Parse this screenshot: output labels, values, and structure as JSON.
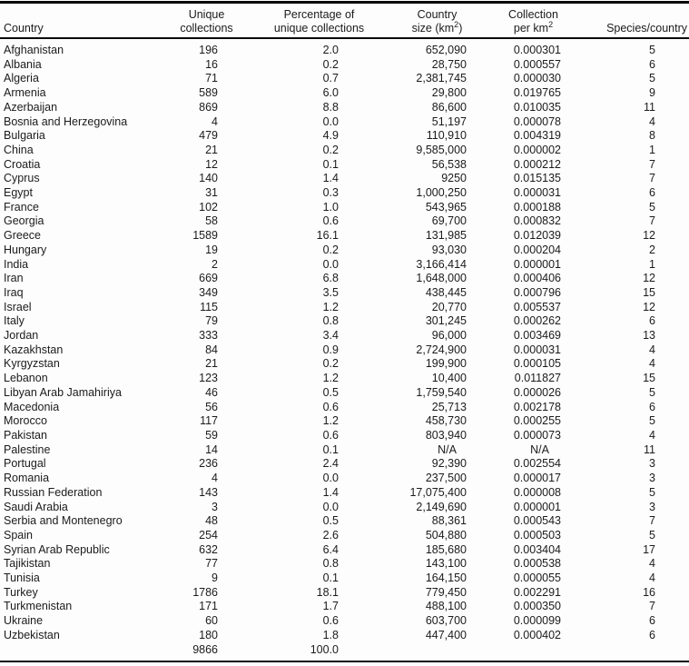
{
  "table": {
    "columns": [
      {
        "line1": "",
        "line2": "Country"
      },
      {
        "line1": "Unique",
        "line2": "collections"
      },
      {
        "line1": "Percentage of",
        "line2": "unique collections"
      },
      {
        "line1": "Country",
        "line2_pre": "size (km",
        "line2_sup": "2",
        "line2_post": ")"
      },
      {
        "line1": "Collection",
        "line2_pre": "per km",
        "line2_sup": "2",
        "line2_post": ""
      },
      {
        "line1": "",
        "line2": "Species/country"
      }
    ],
    "rows": [
      [
        "Afghanistan",
        "196",
        "2.0",
        "652,090",
        "0.000301",
        "5"
      ],
      [
        "Albania",
        "16",
        "0.2",
        "28,750",
        "0.000557",
        "6"
      ],
      [
        "Algeria",
        "71",
        "0.7",
        "2,381,745",
        "0.000030",
        "5"
      ],
      [
        "Armenia",
        "589",
        "6.0",
        "29,800",
        "0.019765",
        "9"
      ],
      [
        "Azerbaijan",
        "869",
        "8.8",
        "86,600",
        "0.010035",
        "11"
      ],
      [
        "Bosnia and Herzegovina",
        "4",
        "0.0",
        "51,197",
        "0.000078",
        "4"
      ],
      [
        "Bulgaria",
        "479",
        "4.9",
        "110,910",
        "0.004319",
        "8"
      ],
      [
        "China",
        "21",
        "0.2",
        "9,585,000",
        "0.000002",
        "1"
      ],
      [
        "Croatia",
        "12",
        "0.1",
        "56,538",
        "0.000212",
        "7"
      ],
      [
        "Cyprus",
        "140",
        "1.4",
        "9250",
        "0.015135",
        "7"
      ],
      [
        "Egypt",
        "31",
        "0.3",
        "1,000,250",
        "0.000031",
        "6"
      ],
      [
        "France",
        "102",
        "1.0",
        "543,965",
        "0.000188",
        "5"
      ],
      [
        "Georgia",
        "58",
        "0.6",
        "69,700",
        "0.000832",
        "7"
      ],
      [
        "Greece",
        "1589",
        "16.1",
        "131,985",
        "0.012039",
        "12"
      ],
      [
        "Hungary",
        "19",
        "0.2",
        "93,030",
        "0.000204",
        "2"
      ],
      [
        "India",
        "2",
        "0.0",
        "3,166,414",
        "0.000001",
        "1"
      ],
      [
        "Iran",
        "669",
        "6.8",
        "1,648,000",
        "0.000406",
        "12"
      ],
      [
        "Iraq",
        "349",
        "3.5",
        "438,445",
        "0.000796",
        "15"
      ],
      [
        "Israel",
        "115",
        "1.2",
        "20,770",
        "0.005537",
        "12"
      ],
      [
        "Italy",
        "79",
        "0.8",
        "301,245",
        "0.000262",
        "6"
      ],
      [
        "Jordan",
        "333",
        "3.4",
        "96,000",
        "0.003469",
        "13"
      ],
      [
        "Kazakhstan",
        "84",
        "0.9",
        "2,724,900",
        "0.000031",
        "4"
      ],
      [
        "Kyrgyzstan",
        "21",
        "0.2",
        "199,900",
        "0.000105",
        "4"
      ],
      [
        "Lebanon",
        "123",
        "1.2",
        "10,400",
        "0.011827",
        "15"
      ],
      [
        "Libyan Arab Jamahiriya",
        "46",
        "0.5",
        "1,759,540",
        "0.000026",
        "5"
      ],
      [
        "Macedonia",
        "56",
        "0.6",
        "25,713",
        "0.002178",
        "6"
      ],
      [
        "Morocco",
        "117",
        "1.2",
        "458,730",
        "0.000255",
        "5"
      ],
      [
        "Pakistan",
        "59",
        "0.6",
        "803,940",
        "0.000073",
        "4"
      ],
      [
        "Palestine",
        "14",
        "0.1",
        "N/A",
        "N/A",
        "11"
      ],
      [
        "Portugal",
        "236",
        "2.4",
        "92,390",
        "0.002554",
        "3"
      ],
      [
        "Romania",
        "4",
        "0.0",
        "237,500",
        "0.000017",
        "3"
      ],
      [
        "Russian Federation",
        "143",
        "1.4",
        "17,075,400",
        "0.000008",
        "5"
      ],
      [
        "Saudi Arabia",
        "3",
        "0.0",
        "2,149,690",
        "0.000001",
        "3"
      ],
      [
        "Serbia and Montenegro",
        "48",
        "0.5",
        "88,361",
        "0.000543",
        "7"
      ],
      [
        "Spain",
        "254",
        "2.6",
        "504,880",
        "0.000503",
        "5"
      ],
      [
        "Syrian Arab Republic",
        "632",
        "6.4",
        "185,680",
        "0.003404",
        "17"
      ],
      [
        "Tajikistan",
        "77",
        "0.8",
        "143,100",
        "0.000538",
        "4"
      ],
      [
        "Tunisia",
        "9",
        "0.1",
        "164,150",
        "0.000055",
        "4"
      ],
      [
        "Turkey",
        "1786",
        "18.1",
        "779,450",
        "0.002291",
        "16"
      ],
      [
        "Turkmenistan",
        "171",
        "1.7",
        "488,100",
        "0.000350",
        "7"
      ],
      [
        "Ukraine",
        "60",
        "0.6",
        "603,700",
        "0.000099",
        "6"
      ],
      [
        "Uzbekistan",
        "180",
        "1.8",
        "447,400",
        "0.000402",
        "6"
      ]
    ],
    "total": {
      "unique_collections": "9866",
      "percentage": "100.0"
    },
    "na_text": "N/A"
  }
}
